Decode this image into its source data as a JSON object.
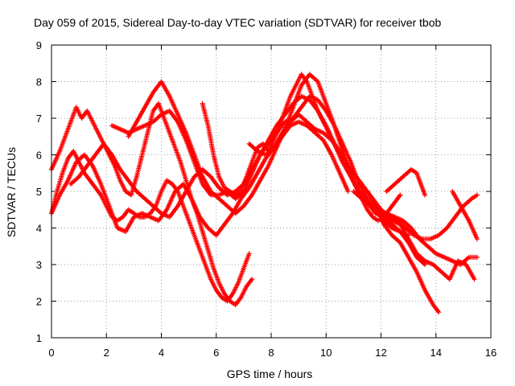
{
  "chart_data": {
    "type": "scatter",
    "title": "Day 059 of 2015, Sidereal Day-to-day VTEC variation (SDTVAR) for receiver tbob",
    "xlabel": "GPS time / hours",
    "ylabel": "SDTVAR / TECUs",
    "xlim": [
      0,
      16
    ],
    "ylim": [
      1,
      9
    ],
    "xticks": [
      "0",
      "2",
      "4",
      "6",
      "8",
      "10",
      "12",
      "14",
      "16"
    ],
    "yticks": [
      "1",
      "2",
      "3",
      "4",
      "5",
      "6",
      "7",
      "8",
      "9"
    ],
    "grid": true,
    "marker": "+",
    "marker_color": "#ff0000",
    "series": [
      {
        "x": [
          0.0,
          0.3,
          0.5,
          0.7,
          0.9,
          1.1,
          1.3,
          1.5,
          1.7,
          1.9,
          2.1,
          2.3,
          2.5,
          2.7,
          2.9,
          3.1,
          3.3,
          3.5,
          3.7,
          3.9,
          4.1,
          4.3,
          4.5,
          4.7,
          4.9,
          5.1,
          5.3,
          5.5,
          5.7,
          5.9,
          6.1,
          6.3,
          6.5,
          6.7,
          6.9,
          7.1,
          7.3
        ],
        "y": [
          5.6,
          6.1,
          6.5,
          6.9,
          7.3,
          7.0,
          7.2,
          6.9,
          6.6,
          6.3,
          6.0,
          5.7,
          5.3,
          5.0,
          4.9,
          5.4,
          6.0,
          6.6,
          7.2,
          7.4,
          7.0,
          6.6,
          6.2,
          5.8,
          5.3,
          4.8,
          4.4,
          3.9,
          3.4,
          2.9,
          2.5,
          2.2,
          2.0,
          1.9,
          2.1,
          2.4,
          2.6
        ]
      },
      {
        "x": [
          0.0,
          0.2,
          0.4,
          0.6,
          0.8,
          1.0,
          1.2,
          1.4,
          1.6,
          1.8,
          2.0,
          2.2,
          2.4,
          2.6,
          2.8,
          3.0,
          3.2,
          3.4,
          3.6,
          3.8,
          4.0,
          4.2,
          4.4,
          4.6,
          4.8,
          5.0,
          5.2,
          5.4,
          5.6,
          5.8,
          6.0,
          6.2,
          6.4,
          6.6,
          6.8,
          7.0,
          7.2
        ],
        "y": [
          4.4,
          5.0,
          5.5,
          5.9,
          6.1,
          5.8,
          5.5,
          5.3,
          5.1,
          4.9,
          4.6,
          4.3,
          4.2,
          4.3,
          4.5,
          4.4,
          4.3,
          4.3,
          4.4,
          4.6,
          5.0,
          5.3,
          5.2,
          5.0,
          4.6,
          4.2,
          3.8,
          3.4,
          3.0,
          2.6,
          2.3,
          2.1,
          2.0,
          2.2,
          2.5,
          2.9,
          3.3
        ]
      },
      {
        "x": [
          0.0,
          0.3,
          0.6,
          0.9,
          1.2,
          1.5,
          1.8,
          2.1,
          2.4,
          2.7,
          3.0,
          3.3,
          3.6,
          3.9,
          4.2,
          4.5,
          4.8,
          5.1,
          5.4,
          5.7,
          6.0,
          6.3,
          6.6,
          6.9,
          7.2,
          7.5,
          7.8,
          8.1,
          8.4,
          8.7,
          9.0,
          9.3,
          9.6,
          9.9,
          10.2,
          10.5,
          10.8
        ],
        "y": [
          4.4,
          4.9,
          5.3,
          5.8,
          6.0,
          5.7,
          5.2,
          4.6,
          4.0,
          3.9,
          4.3,
          4.4,
          4.3,
          4.2,
          4.5,
          5.0,
          5.2,
          4.8,
          4.3,
          4.0,
          3.8,
          4.1,
          4.4,
          4.8,
          5.1,
          5.5,
          5.9,
          6.2,
          6.5,
          6.8,
          6.9,
          6.8,
          6.6,
          6.4,
          6.0,
          5.5,
          5.0
        ]
      },
      {
        "x": [
          0.7,
          1.0,
          1.3,
          1.6,
          1.9,
          2.2,
          2.5,
          2.8,
          3.1,
          3.4,
          3.7,
          4.0,
          4.3,
          4.6,
          4.9,
          5.2,
          5.5,
          5.8,
          6.1,
          6.4,
          6.7,
          7.0,
          7.3,
          7.6,
          7.9,
          8.2,
          8.5,
          8.8,
          9.1,
          9.4,
          9.7,
          10.0,
          10.3,
          10.6,
          10.9,
          11.2,
          11.5
        ],
        "y": [
          5.2,
          5.4,
          5.7,
          6.0,
          6.3,
          6.0,
          5.6,
          5.3,
          5.0,
          4.8,
          4.6,
          4.4,
          4.3,
          4.6,
          5.0,
          5.4,
          5.6,
          5.4,
          5.1,
          4.9,
          5.0,
          5.2,
          5.6,
          6.0,
          6.4,
          6.8,
          7.1,
          7.4,
          7.6,
          7.5,
          7.2,
          6.8,
          6.3,
          5.8,
          5.4,
          5.0,
          4.8
        ]
      },
      {
        "x": [
          2.2,
          2.5,
          2.8,
          3.1,
          3.4,
          3.7,
          4.0,
          4.3,
          4.6,
          4.9,
          5.2,
          5.5,
          5.8,
          6.1,
          6.4,
          6.7,
          7.0,
          7.3,
          7.6,
          7.9,
          8.2,
          8.5,
          8.8,
          9.1,
          9.4,
          9.7,
          10.0,
          10.3,
          10.6,
          10.9,
          11.2,
          11.5,
          11.8,
          12.1,
          12.4,
          12.7,
          13.0
        ],
        "y": [
          6.8,
          6.7,
          6.6,
          6.7,
          6.8,
          6.9,
          7.1,
          7.2,
          6.9,
          6.4,
          5.8,
          5.2,
          4.9,
          4.9,
          5.0,
          4.8,
          5.0,
          5.5,
          6.0,
          6.3,
          6.6,
          6.9,
          7.0,
          7.3,
          7.6,
          7.5,
          7.2,
          6.8,
          6.3,
          5.8,
          5.2,
          4.8,
          4.5,
          4.2,
          4.0,
          3.9,
          3.8
        ]
      },
      {
        "x": [
          2.8,
          3.1,
          3.4,
          3.7,
          4.0,
          4.3,
          4.6,
          4.9,
          5.2,
          5.5,
          5.8,
          6.1,
          6.4,
          6.7,
          7.0,
          7.3,
          7.6,
          7.9,
          8.2,
          8.5,
          8.8,
          9.1,
          9.4,
          9.7,
          10.0,
          10.3,
          10.6,
          10.9,
          11.2,
          11.5,
          11.8,
          12.1,
          12.4,
          12.7,
          13.0,
          13.3,
          13.6
        ],
        "y": [
          6.5,
          6.9,
          7.3,
          7.7,
          8.0,
          7.6,
          7.1,
          6.6,
          6.0,
          5.4,
          5.0,
          4.8,
          4.6,
          4.4,
          4.6,
          4.9,
          5.3,
          5.7,
          6.2,
          6.7,
          7.3,
          7.9,
          8.2,
          8.0,
          7.4,
          6.8,
          6.1,
          5.5,
          5.0,
          4.7,
          4.4,
          4.3,
          4.1,
          3.9,
          3.6,
          3.2,
          3.0
        ]
      },
      {
        "x": [
          5.5,
          5.7,
          5.9,
          6.1,
          6.3,
          6.5,
          6.7,
          6.9,
          7.1,
          7.3,
          7.5,
          7.7,
          7.9,
          8.1,
          8.3,
          8.5,
          8.7,
          8.9,
          9.1,
          9.3,
          9.5,
          9.7,
          9.9,
          10.1,
          10.3,
          10.5,
          10.7,
          10.9,
          11.1,
          11.3,
          11.5,
          11.7,
          11.9,
          12.1,
          12.3,
          12.5,
          12.7
        ],
        "y": [
          7.4,
          6.8,
          6.0,
          5.4,
          5.1,
          5.0,
          4.9,
          5.0,
          5.4,
          5.8,
          6.2,
          6.3,
          6.1,
          6.4,
          6.8,
          7.2,
          7.6,
          7.9,
          8.2,
          8.0,
          7.6,
          7.2,
          6.9,
          6.6,
          6.3,
          6.0,
          5.7,
          5.4,
          5.1,
          4.8,
          4.5,
          4.3,
          4.2,
          4.3,
          4.5,
          4.7,
          4.9
        ]
      },
      {
        "x": [
          7.2,
          7.5,
          7.8,
          8.1,
          8.4,
          8.7,
          9.0,
          9.3,
          9.6,
          9.9,
          10.2,
          10.5,
          10.8,
          11.1,
          11.4,
          11.7,
          12.0,
          12.3,
          12.6,
          12.9,
          13.2,
          13.5,
          13.8,
          14.1,
          14.4,
          14.7,
          15.0,
          15.3,
          15.5
        ],
        "y": [
          6.3,
          6.1,
          6.0,
          6.2,
          6.6,
          6.9,
          7.1,
          6.9,
          6.7,
          6.6,
          6.4,
          6.1,
          5.7,
          5.4,
          5.1,
          4.8,
          4.5,
          4.3,
          4.2,
          4.0,
          3.8,
          3.7,
          3.7,
          3.8,
          4.0,
          4.3,
          4.6,
          4.8,
          4.9
        ]
      },
      {
        "x": [
          11.0,
          11.3,
          11.6,
          11.9,
          12.2,
          12.5,
          12.8,
          13.1,
          13.4,
          13.7,
          14.0,
          14.3,
          14.6,
          14.9,
          15.2,
          15.5
        ],
        "y": [
          5.0,
          4.8,
          4.6,
          4.5,
          4.4,
          4.3,
          4.2,
          4.0,
          3.7,
          3.5,
          3.3,
          3.2,
          3.1,
          3.0,
          3.2,
          3.2
        ]
      },
      {
        "x": [
          11.8,
          12.1,
          12.4,
          12.7,
          13.0,
          13.3,
          13.6,
          13.9,
          14.2,
          14.5,
          14.8,
          15.1,
          15.4
        ],
        "y": [
          4.5,
          4.3,
          4.2,
          4.1,
          3.7,
          3.3,
          3.1,
          3.0,
          2.8,
          2.6,
          3.1,
          3.0,
          2.6
        ]
      },
      {
        "x": [
          11.5,
          11.8,
          12.1,
          12.4,
          12.7,
          13.0,
          13.3,
          13.6,
          13.9,
          14.1
        ],
        "y": [
          5.0,
          4.6,
          4.1,
          3.8,
          3.6,
          3.2,
          2.8,
          2.3,
          1.9,
          1.7
        ]
      },
      {
        "x": [
          12.2,
          12.5,
          12.8,
          13.1,
          13.3,
          13.6
        ],
        "y": [
          5.0,
          5.2,
          5.4,
          5.6,
          5.5,
          4.9
        ]
      },
      {
        "x": [
          14.6,
          14.9,
          15.2,
          15.5
        ],
        "y": [
          5.0,
          4.6,
          4.2,
          3.7
        ]
      }
    ]
  }
}
